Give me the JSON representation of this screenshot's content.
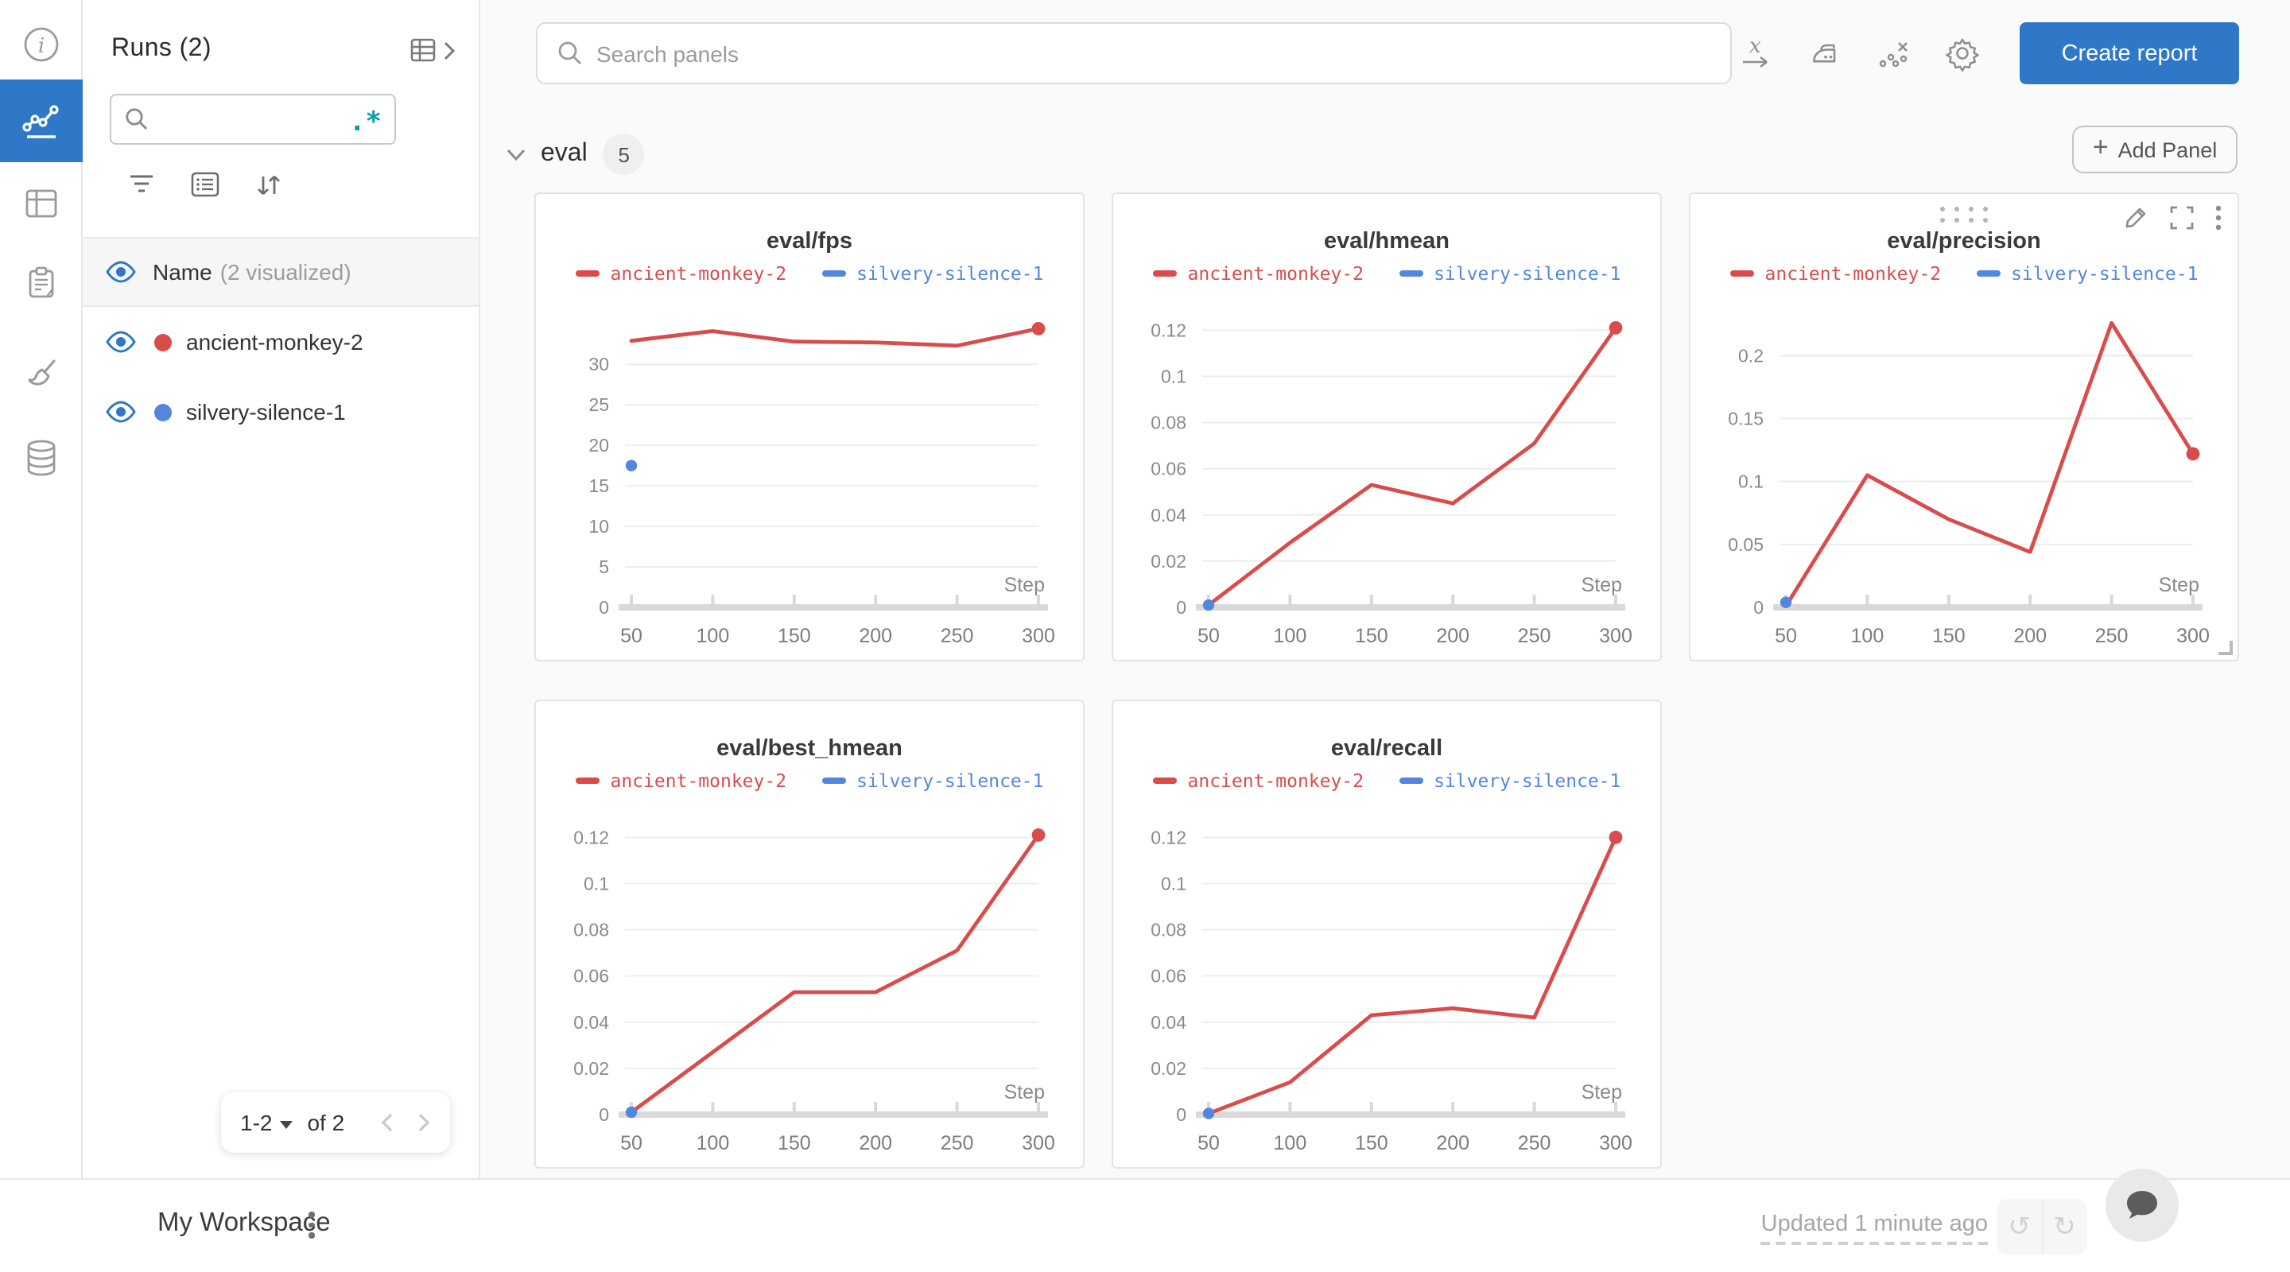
{
  "colors": {
    "accent_blue": "#2e78c7",
    "run_red": "#da4c4c",
    "run_blue": "#5387dd",
    "teal": "#00a0a8",
    "grid": "#ededed",
    "axis": "#d9d9d9",
    "tick_text": "#8a8a8a"
  },
  "rail": {
    "items": [
      {
        "icon": "info-icon",
        "active": false
      },
      {
        "icon": "line-chart-icon",
        "active": true
      },
      {
        "icon": "table-icon",
        "active": false
      },
      {
        "icon": "clipboard-icon",
        "active": false
      },
      {
        "icon": "brush-icon",
        "active": false
      },
      {
        "icon": "database-icon",
        "active": false
      }
    ]
  },
  "sidebar": {
    "title": "Runs (2)",
    "search": {
      "value": "",
      "placeholder": "",
      "regex_label": ".*"
    },
    "visualized_header": {
      "label": "Name",
      "note": "(2 visualized)"
    },
    "runs": [
      {
        "name": "ancient-monkey-2",
        "color": "#da4c4c"
      },
      {
        "name": "silvery-silence-1",
        "color": "#5387dd"
      }
    ],
    "pagination": {
      "range": "1-2",
      "of": "of 2"
    }
  },
  "topbar": {
    "search_placeholder": "Search panels",
    "icons": [
      "x-axis-icon",
      "iron-smoothing-icon",
      "outliers-icon",
      "gear-icon"
    ],
    "create_report_label": "Create report"
  },
  "section": {
    "title": "eval",
    "count": "5",
    "add_panel_label": "Add Panel",
    "plus": "+"
  },
  "chart_data": [
    {
      "type": "line",
      "title": "eval/fps",
      "xlabel": "Step",
      "x": [
        50,
        100,
        150,
        200,
        250,
        300
      ],
      "xticks": [
        "50",
        "100",
        "150",
        "200",
        "250",
        "300"
      ],
      "yticks": [
        0,
        5,
        10,
        15,
        20,
        25,
        30
      ],
      "ymax": 36.5,
      "legend_position": "top",
      "grid": true,
      "hovered": false,
      "series": [
        {
          "name": "ancient-monkey-2",
          "color": "#da4c4c",
          "x": [
            50,
            100,
            150,
            200,
            250,
            300
          ],
          "y": [
            32.9,
            34.1,
            32.8,
            32.7,
            32.3,
            34.4
          ],
          "endpoint_dot": true
        },
        {
          "name": "silvery-silence-1",
          "color": "#5387dd",
          "x": [
            50
          ],
          "y": [
            17.5
          ],
          "endpoint_dot": true
        }
      ]
    },
    {
      "type": "line",
      "title": "eval/hmean",
      "xlabel": "Step",
      "x": [
        50,
        100,
        150,
        200,
        250,
        300
      ],
      "xticks": [
        "50",
        "100",
        "150",
        "200",
        "250",
        "300"
      ],
      "yticks": [
        0,
        0.02,
        0.04,
        0.06,
        0.08,
        0.1,
        0.12
      ],
      "ymax": 0.128,
      "legend_position": "top",
      "grid": true,
      "hovered": false,
      "series": [
        {
          "name": "ancient-monkey-2",
          "color": "#da4c4c",
          "x": [
            50,
            100,
            150,
            200,
            250,
            300
          ],
          "y": [
            0.001,
            0.028,
            0.053,
            0.045,
            0.071,
            0.121
          ],
          "endpoint_dot": true
        },
        {
          "name": "silvery-silence-1",
          "color": "#5387dd",
          "x": [
            50
          ],
          "y": [
            0.001
          ],
          "endpoint_dot": true
        }
      ]
    },
    {
      "type": "line",
      "title": "eval/precision",
      "xlabel": "Step",
      "x": [
        50,
        100,
        150,
        200,
        250,
        300
      ],
      "xticks": [
        "50",
        "100",
        "150",
        "200",
        "250",
        "300"
      ],
      "yticks": [
        0,
        0.05,
        0.1,
        0.15,
        0.2
      ],
      "ymax": 0.235,
      "legend_position": "top",
      "grid": true,
      "hovered": true,
      "series": [
        {
          "name": "ancient-monkey-2",
          "color": "#da4c4c",
          "x": [
            50,
            100,
            150,
            200,
            250,
            300
          ],
          "y": [
            0.001,
            0.105,
            0.07,
            0.044,
            0.226,
            0.122
          ],
          "endpoint_dot": true
        },
        {
          "name": "silvery-silence-1",
          "color": "#5387dd",
          "x": [
            50
          ],
          "y": [
            0.004
          ],
          "endpoint_dot": true
        }
      ]
    },
    {
      "type": "line",
      "title": "eval/best_hmean",
      "xlabel": "Step",
      "x": [
        50,
        100,
        150,
        200,
        250,
        300
      ],
      "xticks": [
        "50",
        "100",
        "150",
        "200",
        "250",
        "300"
      ],
      "yticks": [
        0,
        0.02,
        0.04,
        0.06,
        0.08,
        0.1,
        0.12
      ],
      "ymax": 0.128,
      "legend_position": "top",
      "grid": true,
      "hovered": false,
      "series": [
        {
          "name": "ancient-monkey-2",
          "color": "#da4c4c",
          "x": [
            50,
            100,
            150,
            200,
            250,
            300
          ],
          "y": [
            0.001,
            0.027,
            0.053,
            0.053,
            0.071,
            0.121
          ],
          "endpoint_dot": true
        },
        {
          "name": "silvery-silence-1",
          "color": "#5387dd",
          "x": [
            50
          ],
          "y": [
            0.001
          ],
          "endpoint_dot": true
        }
      ]
    },
    {
      "type": "line",
      "title": "eval/recall",
      "xlabel": "Step",
      "x": [
        50,
        100,
        150,
        200,
        250,
        300
      ],
      "xticks": [
        "50",
        "100",
        "150",
        "200",
        "250",
        "300"
      ],
      "yticks": [
        0,
        0.02,
        0.04,
        0.06,
        0.08,
        0.1,
        0.12
      ],
      "ymax": 0.128,
      "legend_position": "top",
      "grid": true,
      "hovered": false,
      "series": [
        {
          "name": "ancient-monkey-2",
          "color": "#da4c4c",
          "x": [
            50,
            100,
            150,
            200,
            250,
            300
          ],
          "y": [
            0.0005,
            0.014,
            0.043,
            0.046,
            0.042,
            0.12
          ],
          "endpoint_dot": true
        },
        {
          "name": "silvery-silence-1",
          "color": "#5387dd",
          "x": [
            50
          ],
          "y": [
            0.0005
          ],
          "endpoint_dot": true
        }
      ]
    }
  ],
  "bottombar": {
    "workspace_label": "My Workspace",
    "updated_label": "Updated 1 minute ago"
  }
}
